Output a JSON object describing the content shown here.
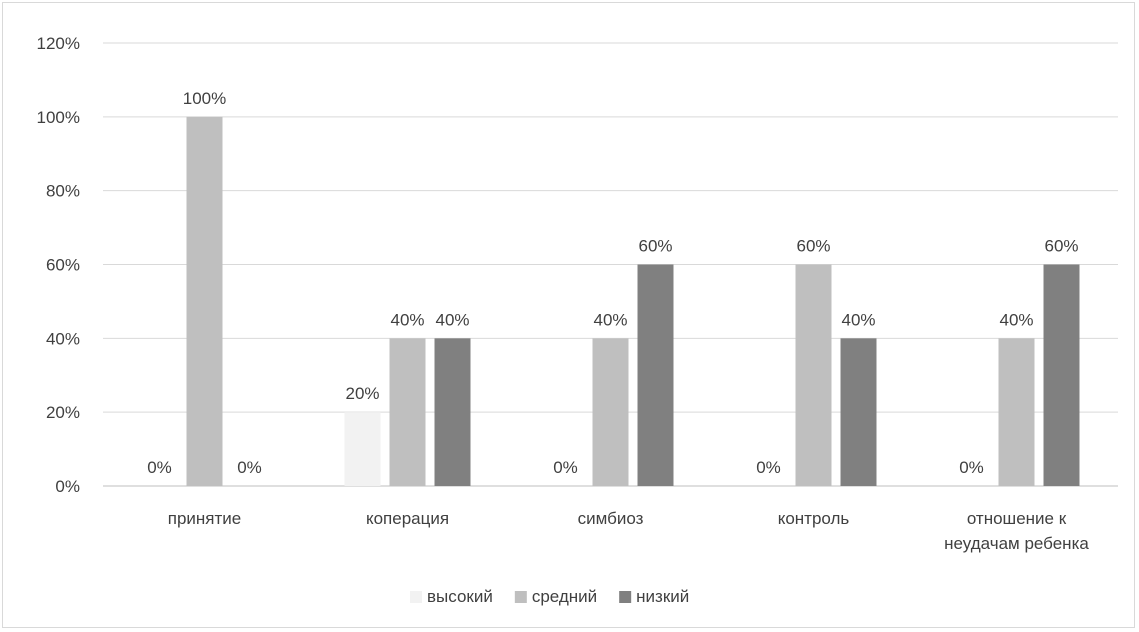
{
  "chart_data": {
    "type": "bar",
    "title": "",
    "xlabel": "",
    "ylabel": "",
    "ylim": [
      0,
      120
    ],
    "y_ticks": [
      "0%",
      "20%",
      "40%",
      "60%",
      "80%",
      "100%",
      "120%"
    ],
    "y_tick_values": [
      0,
      20,
      40,
      60,
      80,
      100,
      120
    ],
    "grid": true,
    "legend_position": "bottom",
    "categories": [
      [
        "принятие"
      ],
      [
        "коперация"
      ],
      [
        "симбиоз"
      ],
      [
        "контроль"
      ],
      [
        "отношение к",
        "неудачам ребенка"
      ]
    ],
    "series": [
      {
        "name": "высокий",
        "color": "#f2f2f2",
        "values": [
          0,
          20,
          0,
          0,
          0
        ],
        "labels": [
          "0%",
          "20%",
          "0%",
          "0%",
          "0%"
        ]
      },
      {
        "name": "средний",
        "color": "#bfbfbf",
        "values": [
          100,
          40,
          40,
          60,
          40
        ],
        "labels": [
          "100%",
          "40%",
          "40%",
          "60%",
          "40%"
        ]
      },
      {
        "name": "низкий",
        "color": "#808080",
        "values": [
          0,
          40,
          60,
          40,
          60
        ],
        "labels": [
          "0%",
          "40%",
          "60%",
          "40%",
          "60%"
        ]
      }
    ]
  }
}
